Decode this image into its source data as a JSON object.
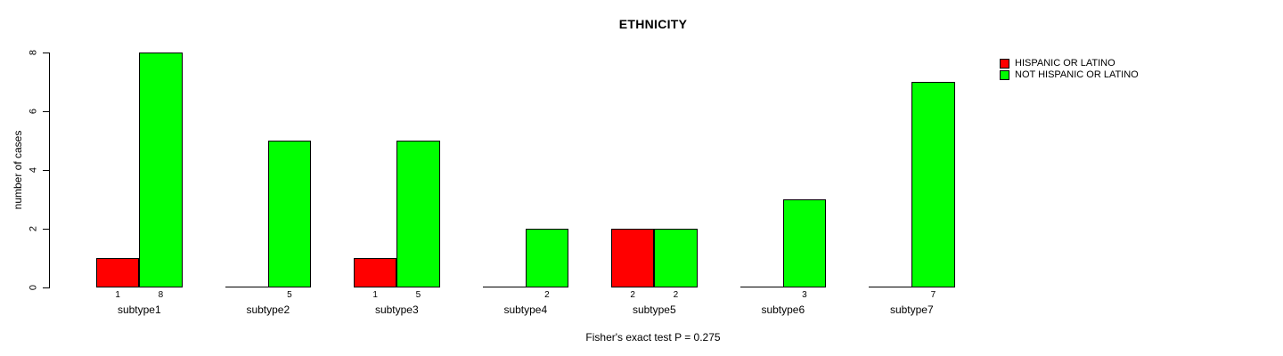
{
  "chart_data": {
    "type": "bar",
    "title": "ETHNICITY",
    "xlabel": "",
    "ylabel": "number of cases",
    "ylim": [
      0,
      8
    ],
    "yticks": [
      0,
      2,
      4,
      6,
      8
    ],
    "grid": false,
    "legend_position": "top-right",
    "annotation": "Fisher's exact test P = 0.275",
    "categories": [
      "subtype1",
      "subtype2",
      "subtype3",
      "subtype4",
      "subtype5",
      "subtype6",
      "subtype7"
    ],
    "series": [
      {
        "name": "HISPANIC OR LATINO",
        "color": "#ff0000",
        "values": [
          1,
          0,
          1,
          0,
          2,
          0,
          0
        ]
      },
      {
        "name": "NOT HISPANIC OR LATINO",
        "color": "#00ff00",
        "values": [
          8,
          5,
          5,
          2,
          2,
          3,
          7
        ]
      }
    ],
    "value_labels_shown": [
      [
        "1",
        "8"
      ],
      [
        "",
        "5"
      ],
      [
        "1",
        "5"
      ],
      [
        "",
        "2"
      ],
      [
        "2",
        "2"
      ],
      [
        "",
        "3"
      ],
      [
        "",
        "7"
      ]
    ],
    "colors": {
      "axis": "#000000",
      "text": "#000000",
      "background": "#ffffff"
    }
  }
}
